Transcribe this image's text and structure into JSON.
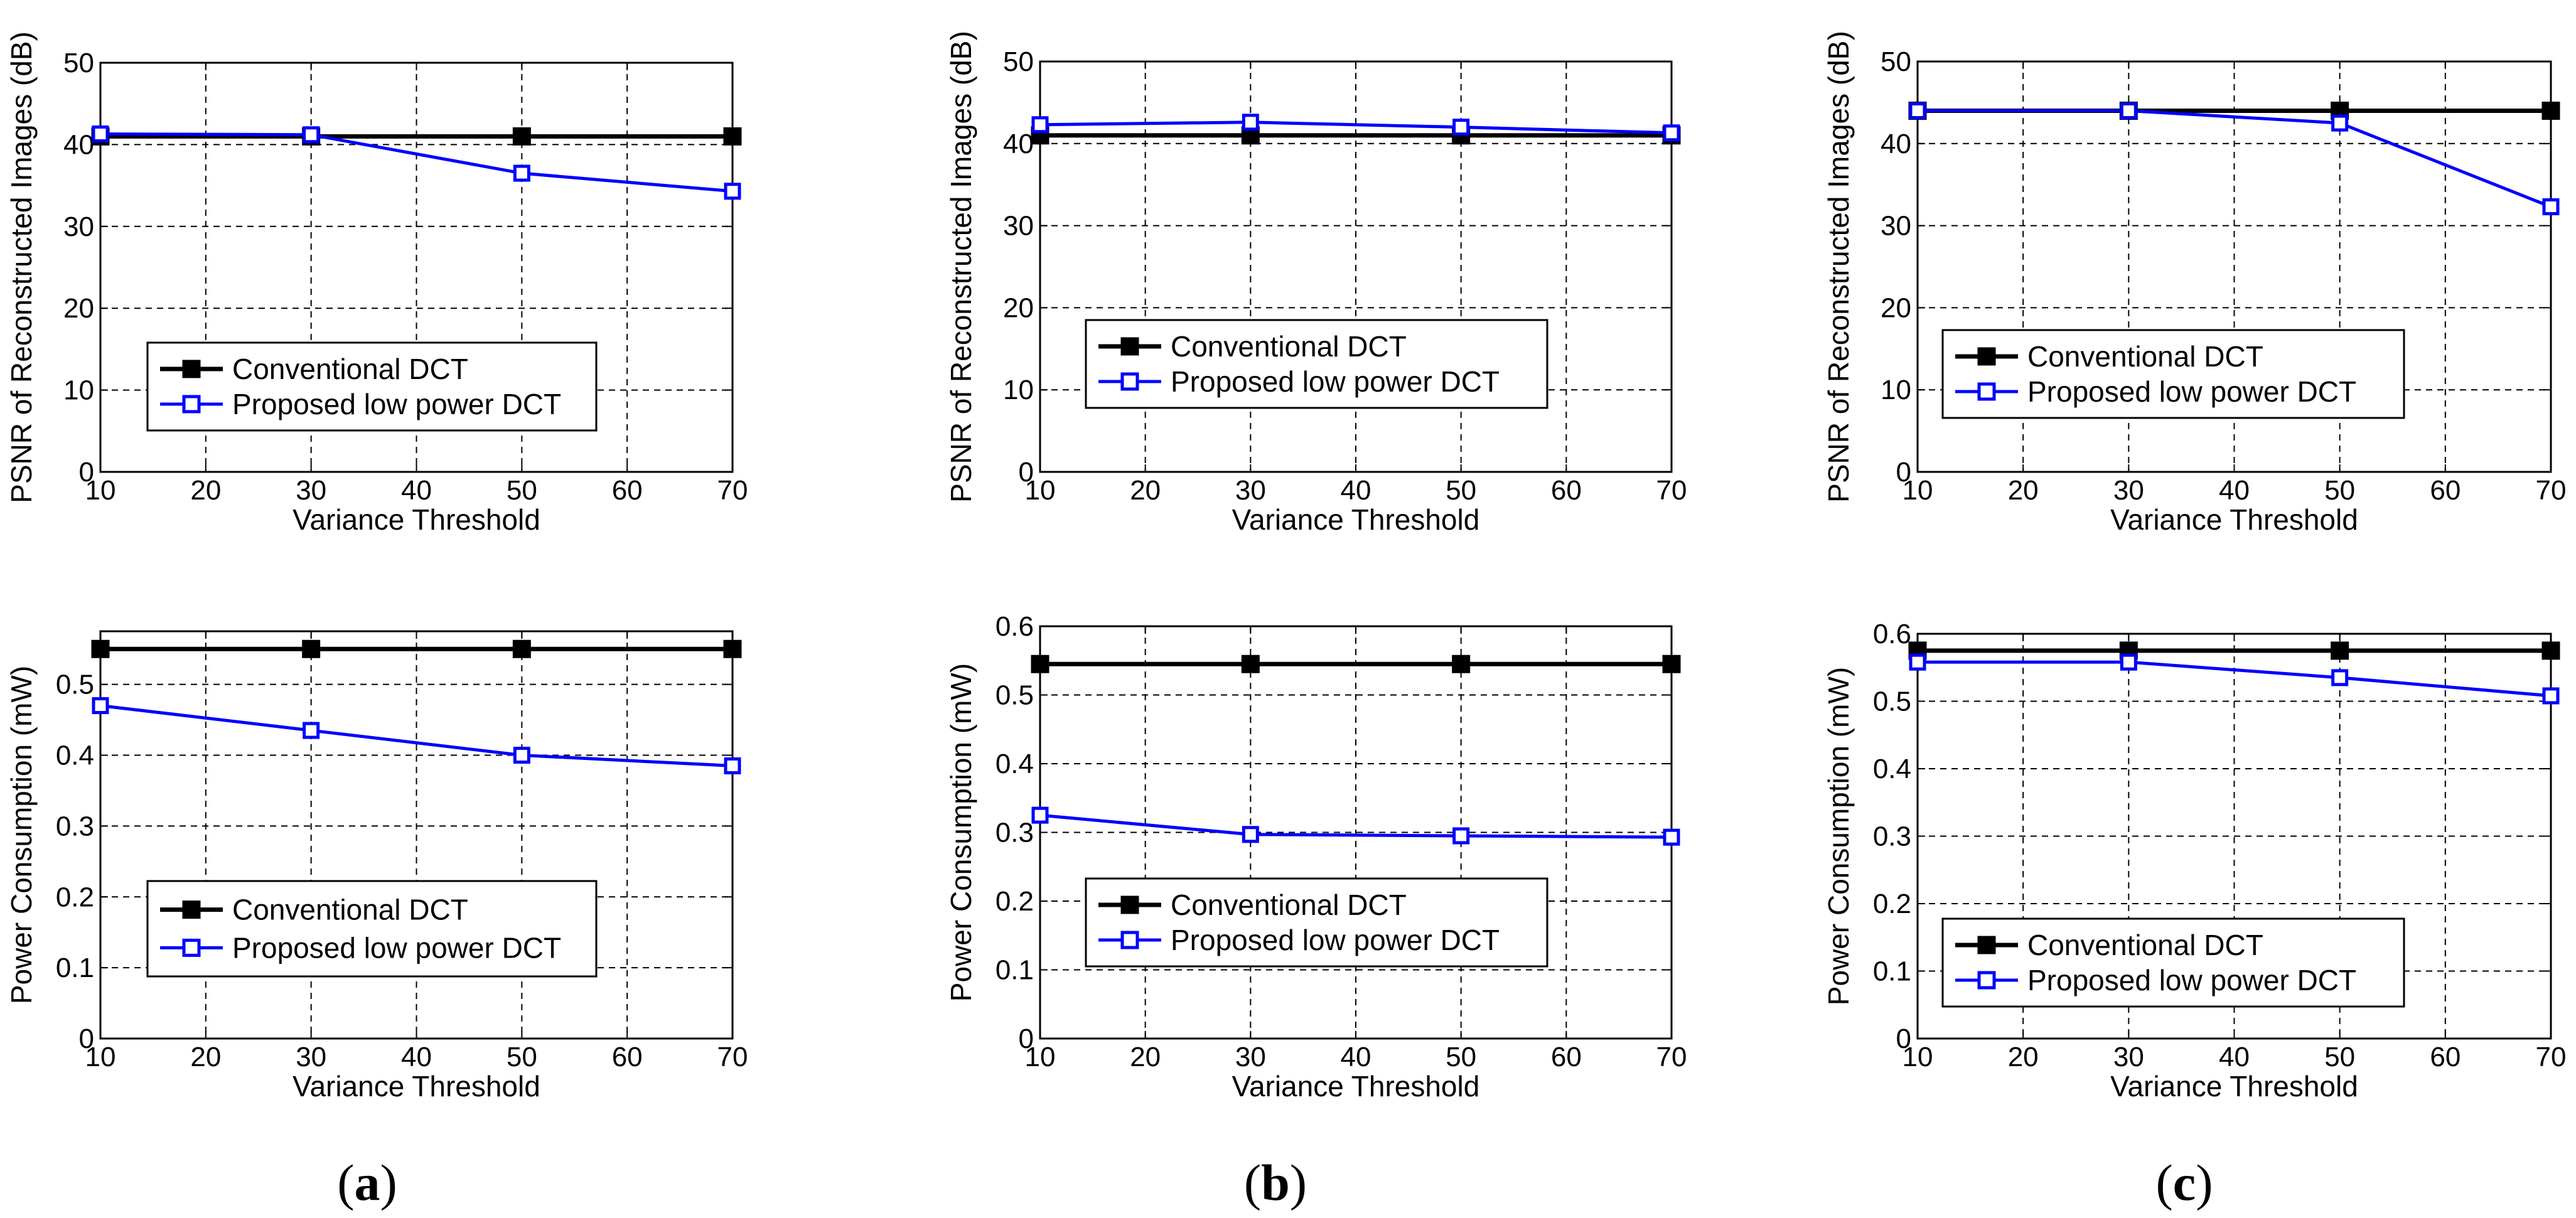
{
  "colors": {
    "conventional": "#000000",
    "proposed": "#0000ff",
    "grid": "#000000",
    "background": "#ffffff"
  },
  "captions": [
    {
      "open": "(",
      "letter": "a",
      "close": ")"
    },
    {
      "open": "(",
      "letter": "b",
      "close": ")"
    },
    {
      "open": "(",
      "letter": "c",
      "close": ")"
    }
  ],
  "chart_data": [
    {
      "id": "a-psnr",
      "type": "line",
      "panel": "a",
      "xlabel": "Variance Threshold",
      "ylabel": "PSNR of Reconstructed Images (dB)",
      "xlim": [
        10,
        70
      ],
      "ylim": [
        0,
        50
      ],
      "xticks": [
        "10",
        "20",
        "30",
        "40",
        "50",
        "60",
        "70"
      ],
      "yticks": [
        "0",
        "10",
        "20",
        "30",
        "40",
        "50"
      ],
      "x": [
        10,
        30,
        50,
        70
      ],
      "series": [
        {
          "name": "Conventional DCT",
          "marker": "filled-square",
          "values": [
            41,
            41,
            41,
            41
          ]
        },
        {
          "name": "Proposed low power DCT",
          "marker": "open-square",
          "values": [
            41.3,
            41.2,
            36.5,
            34.3
          ]
        }
      ],
      "legend": "lower-left"
    },
    {
      "id": "b-psnr",
      "type": "line",
      "panel": "b",
      "xlabel": "Variance Threshold",
      "ylabel": "PSNR of Reconstructed Images (dB)",
      "xlim": [
        10,
        70
      ],
      "ylim": [
        0,
        50
      ],
      "xticks": [
        "10",
        "20",
        "30",
        "40",
        "50",
        "60",
        "70"
      ],
      "yticks": [
        "0",
        "10",
        "20",
        "30",
        "40",
        "50"
      ],
      "x": [
        10,
        30,
        50,
        70
      ],
      "series": [
        {
          "name": "Conventional DCT",
          "marker": "filled-square",
          "values": [
            41,
            41,
            41,
            41
          ]
        },
        {
          "name": "Proposed low power DCT",
          "marker": "open-square",
          "values": [
            42.3,
            42.6,
            42,
            41.3
          ]
        }
      ],
      "legend": "lower-left"
    },
    {
      "id": "c-psnr",
      "type": "line",
      "panel": "c",
      "xlabel": "Variance Threshold",
      "ylabel": "PSNR of Reconstructed Images (dB)",
      "xlim": [
        10,
        70
      ],
      "ylim": [
        0,
        50
      ],
      "xticks": [
        "10",
        "20",
        "30",
        "40",
        "50",
        "60",
        "70"
      ],
      "yticks": [
        "0",
        "10",
        "20",
        "30",
        "40",
        "50"
      ],
      "x": [
        10,
        30,
        50,
        70
      ],
      "series": [
        {
          "name": "Conventional DCT",
          "marker": "filled-square",
          "values": [
            44,
            44,
            44,
            44
          ]
        },
        {
          "name": "Proposed low power DCT",
          "marker": "open-square",
          "values": [
            44,
            44,
            42.5,
            32.3
          ]
        }
      ],
      "legend": "lower-left"
    },
    {
      "id": "a-power",
      "type": "line",
      "panel": "a",
      "xlabel": "Variance Threshold",
      "ylabel": "Power Consumption (mW)",
      "xlim": [
        10,
        70
      ],
      "ylim": [
        0,
        0.575
      ],
      "xticks": [
        "10",
        "20",
        "30",
        "40",
        "50",
        "60",
        "70"
      ],
      "yticks": [
        "0",
        "0.1",
        "0.2",
        "0.3",
        "0.4",
        "0.5"
      ],
      "x": [
        10,
        30,
        50,
        70
      ],
      "series": [
        {
          "name": "Conventional DCT",
          "marker": "filled-square",
          "values": [
            0.55,
            0.55,
            0.55,
            0.55
          ]
        },
        {
          "name": "Proposed low power DCT",
          "marker": "open-square",
          "values": [
            0.47,
            0.435,
            0.4,
            0.385
          ]
        }
      ],
      "legend": "lower-left"
    },
    {
      "id": "b-power",
      "type": "line",
      "panel": "b",
      "xlabel": "Variance Threshold",
      "ylabel": "Power Consumption (mW)",
      "xlim": [
        10,
        70
      ],
      "ylim": [
        0,
        0.6
      ],
      "xticks": [
        "10",
        "20",
        "30",
        "40",
        "50",
        "60",
        "70"
      ],
      "yticks": [
        "0",
        "0.1",
        "0.2",
        "0.3",
        "0.4",
        "0.5",
        "0.6"
      ],
      "x": [
        10,
        30,
        50,
        70
      ],
      "series": [
        {
          "name": "Conventional DCT",
          "marker": "filled-square",
          "values": [
            0.545,
            0.545,
            0.545,
            0.545
          ]
        },
        {
          "name": "Proposed low power DCT",
          "marker": "open-square",
          "values": [
            0.325,
            0.297,
            0.295,
            0.293
          ]
        }
      ],
      "legend": "lower-left"
    },
    {
      "id": "c-power",
      "type": "line",
      "panel": "c",
      "xlabel": "Variance Threshold",
      "ylabel": "Power Consumption (mW)",
      "xlim": [
        10,
        70
      ],
      "ylim": [
        0,
        0.6
      ],
      "xticks": [
        "10",
        "20",
        "30",
        "40",
        "50",
        "60",
        "70"
      ],
      "yticks": [
        "0",
        "0.1",
        "0.2",
        "0.3",
        "0.4",
        "0.5",
        "0.6"
      ],
      "x": [
        10,
        30,
        50,
        70
      ],
      "series": [
        {
          "name": "Conventional DCT",
          "marker": "filled-square",
          "values": [
            0.575,
            0.575,
            0.575,
            0.575
          ]
        },
        {
          "name": "Proposed low power DCT",
          "marker": "open-square",
          "values": [
            0.558,
            0.558,
            0.535,
            0.508
          ]
        }
      ],
      "legend": "lower-left"
    }
  ]
}
